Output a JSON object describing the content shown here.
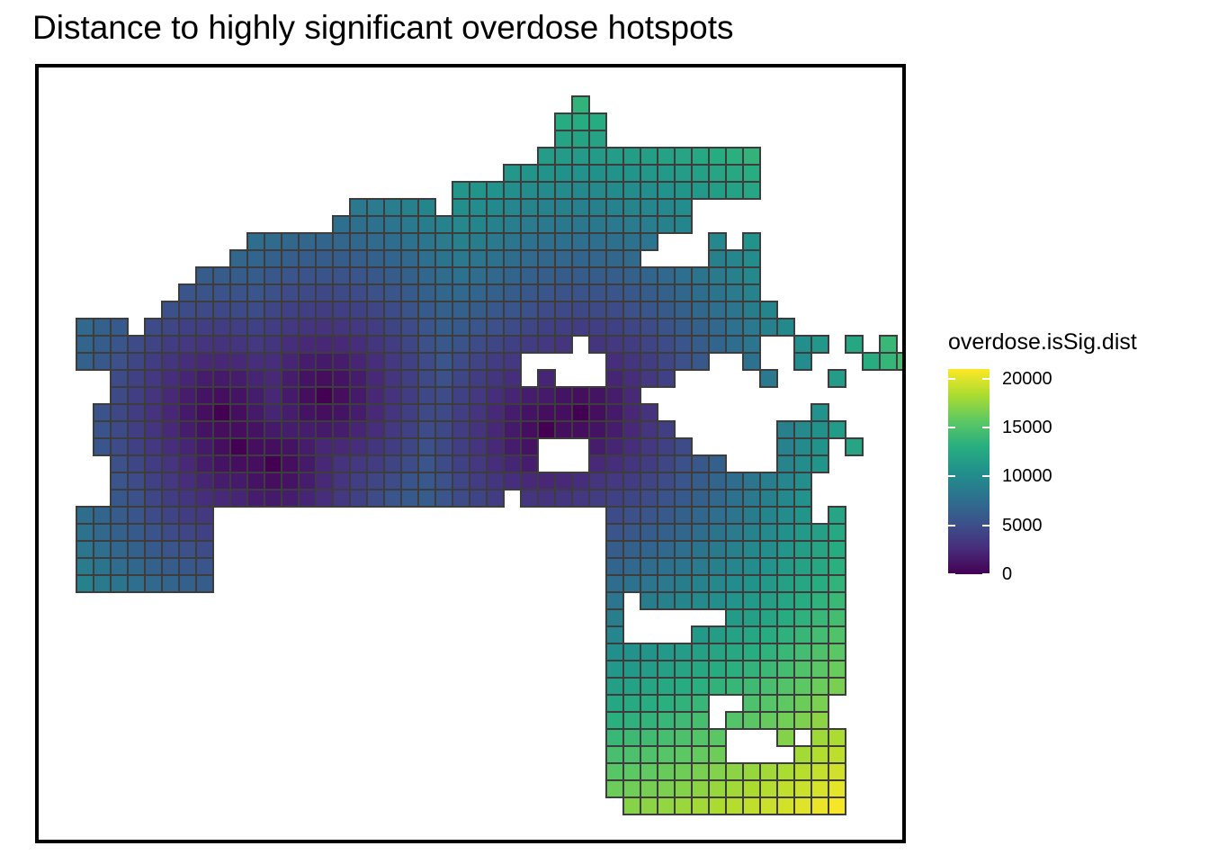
{
  "title": "Distance to highly significant overdose hotspots",
  "legend": {
    "title": "overdose.isSig.dist",
    "ticks": [
      {
        "label": "20000",
        "value": 20000
      },
      {
        "label": "15000",
        "value": 15000
      },
      {
        "label": "10000",
        "value": 10000
      },
      {
        "label": "5000",
        "value": 5000
      },
      {
        "label": "0",
        "value": 0
      }
    ],
    "range": [
      0,
      21000
    ],
    "palette": [
      "#440154",
      "#472d7b",
      "#3b528b",
      "#2c728e",
      "#21918c",
      "#28ae80",
      "#5ec962",
      "#addc30",
      "#fde725"
    ]
  },
  "chart_data": {
    "type": "heatmap",
    "variable": "overdose.isSig.dist",
    "value_range": [
      0,
      21000
    ],
    "grid_cell_stroke": "#3d3d3d",
    "palette_name": "viridis"
  }
}
